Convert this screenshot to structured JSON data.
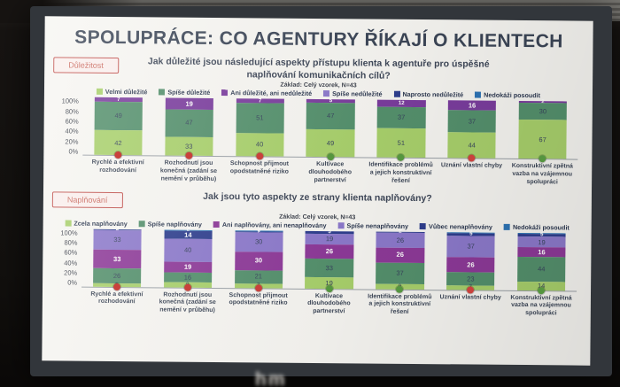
{
  "photo": {
    "blur_text": "hm"
  },
  "slide": {
    "title": "SPOLUPRÁCE: CO AGENTURY ŘÍKAJÍ O KLIENTECH",
    "sections": [
      {
        "badge": "Důležitost",
        "question": "Jak důležité jsou následující aspekty přístupu klienta k agentuře pro úspěšné naplňování komunikačních cílů?",
        "base_note": "Základ: Celý vzorek, N=43"
      },
      {
        "badge": "Naplňování",
        "question": "Jak jsou tyto aspekty ze strany klienta naplňovány?",
        "base_note": "Základ: Celý vzorek, N=43"
      }
    ]
  },
  "chart_data": [
    {
      "type": "bar",
      "stacked": true,
      "title": "Jak důležité jsou následující aspekty přístupu klienta k agentuře pro úspěšné naplňování komunikačních cílů?",
      "base_note": "Základ: Celý vzorek, N=43",
      "ylabel": "",
      "xlabel": "",
      "ylim": [
        0,
        100
      ],
      "yticks": [
        "100%",
        "80%",
        "60%",
        "40%",
        "20%",
        "0%"
      ],
      "grid": false,
      "legend_position": "top",
      "categories": [
        "Rychlé a efektivní rozhodování",
        "Rozhodnutí jsou konečná (zadání se nemění v průběhu)",
        "Schopnost přijmout opodstatněné riziko",
        "Kultivace dlouhodobého partnerství",
        "Identifikace problémů a jejich konstruktivní řešení",
        "Uznání vlastní chyby",
        "Konstruktivní zpětná vazba na vzájemnou spolupráci"
      ],
      "series": [
        {
          "name": "Velmi důležité",
          "color": "#a9d16c",
          "values": [
            42,
            33,
            40,
            49,
            51,
            44,
            67
          ]
        },
        {
          "name": "Spíše důležité",
          "color": "#55916d",
          "values": [
            49,
            47,
            51,
            47,
            37,
            37,
            30
          ]
        },
        {
          "name": "Ani důležité, ani nedůležité",
          "color": "#7b3d9e",
          "values": [
            7,
            19,
            7,
            5,
            12,
            16,
            2
          ]
        },
        {
          "name": "Spíše nedůležité",
          "color": "#8d7acc",
          "values": [
            0,
            0,
            0,
            0,
            0,
            0,
            0
          ]
        },
        {
          "name": "Naprosto nedůležité",
          "color": "#2f3f8f",
          "values": [
            0,
            0,
            0,
            0,
            0,
            0,
            0
          ]
        },
        {
          "name": "Nedokáži posoudit",
          "color": "#2e75b6",
          "values": [
            0,
            0,
            0,
            0,
            0,
            0,
            0
          ]
        }
      ],
      "category_dots": [
        "red",
        "red",
        "red",
        "green",
        "green",
        "red",
        "green"
      ],
      "dot_colors": {
        "red": "#c9413c",
        "green": "#55953f"
      }
    },
    {
      "type": "bar",
      "stacked": true,
      "title": "Jak jsou tyto aspekty ze strany klienta naplňovány?",
      "base_note": "Základ: Celý vzorek, N=43",
      "ylabel": "",
      "xlabel": "",
      "ylim": [
        0,
        100
      ],
      "yticks": [
        "100%",
        "80%",
        "60%",
        "40%",
        "20%",
        "0%"
      ],
      "grid": false,
      "legend_position": "top",
      "categories": [
        "Rychlé a efektivní rozhodování",
        "Rozhodnutí jsou konečná (zadání se nemění v průběhu)",
        "Schopnost přijmout opodstatněné riziko",
        "Kultivace dlouhodobého partnerství",
        "Identifikace problémů a jejich konstruktivní řešení",
        "Uznání vlastní chyby",
        "Konstruktivní zpětná vazba na vzájemnou spolupráci"
      ],
      "series": [
        {
          "name": "Zcela naplňovány",
          "color": "#a9d16c",
          "values": [
            5,
            9,
            7,
            19,
            9,
            7,
            14
          ]
        },
        {
          "name": "Spíše naplňovány",
          "color": "#55916d",
          "values": [
            26,
            16,
            21,
            33,
            37,
            23,
            44
          ]
        },
        {
          "name": "Ani naplňovány, ani nenaplňovány",
          "color": "#8e3a99",
          "values": [
            33,
            19,
            30,
            26,
            26,
            26,
            16
          ]
        },
        {
          "name": "Spíše nenaplňovány",
          "color": "#8d7acc",
          "values": [
            33,
            40,
            30,
            19,
            26,
            37,
            19
          ]
        },
        {
          "name": "Vůbec nenaplňovány",
          "color": "#2f3f8f",
          "values": [
            2,
            14,
            2,
            5,
            2,
            5,
            5
          ]
        },
        {
          "name": "Nedokáži posoudit",
          "color": "#2e75b6",
          "values": [
            0,
            2,
            2,
            0,
            0,
            2,
            2
          ]
        }
      ],
      "category_dots": [
        "red",
        "red",
        "red",
        "green",
        "green",
        "red",
        "green"
      ],
      "dot_colors": {
        "red": "#c9413c",
        "green": "#55953f"
      }
    }
  ]
}
